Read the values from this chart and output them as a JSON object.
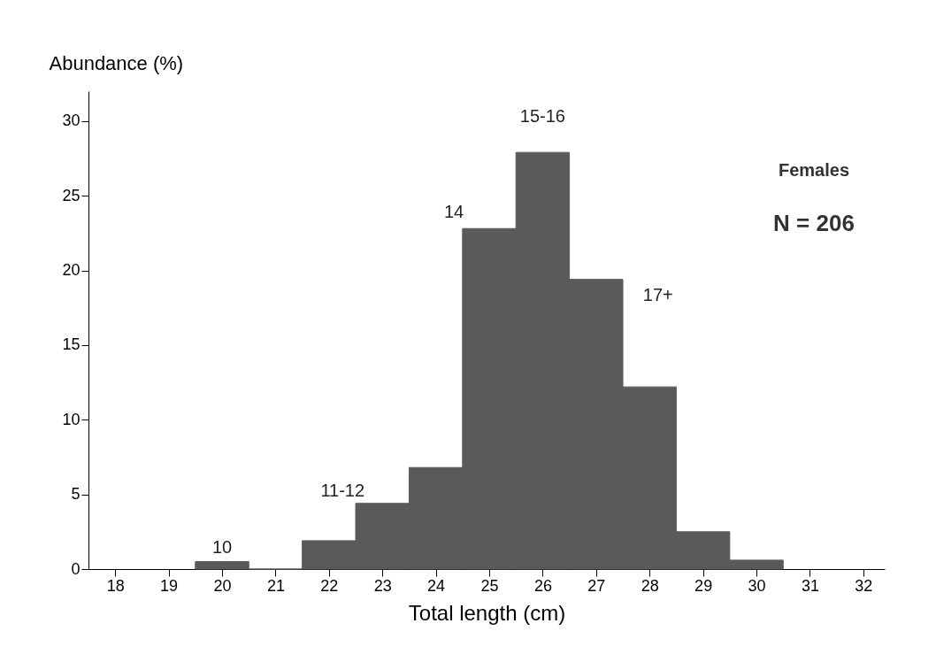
{
  "chart_data": {
    "type": "histogram",
    "xlabel": "Total length (cm)",
    "ylabel": "Abundance (%)",
    "bins": [
      19.5,
      20.5,
      21.5,
      22.5,
      23.5,
      24.5,
      25.5,
      26.5,
      27.5,
      28.5,
      29.5,
      30.5
    ],
    "values": [
      0.5,
      0,
      1.9,
      4.4,
      6.8,
      22.8,
      27.9,
      19.4,
      12.2,
      2.5,
      0.6
    ],
    "color": "#5a5a5a",
    "xlim": [
      17.5,
      32.4
    ],
    "xticks": [
      18,
      19,
      20,
      21,
      22,
      23,
      24,
      25,
      26,
      27,
      28,
      29,
      30,
      31,
      32
    ],
    "ylim": [
      0,
      32
    ],
    "yticks": [
      0,
      5,
      10,
      15,
      20,
      25,
      30
    ],
    "grid": false,
    "annotations": [
      {
        "text": "10",
        "x": 20,
        "y": 0.5
      },
      {
        "text": "11-12",
        "x": 23,
        "y": 4.4
      },
      {
        "text": "14",
        "x": 25,
        "y": 22.8
      },
      {
        "text": "15-16",
        "x": 26,
        "y": 27.9
      },
      {
        "text": "17+",
        "x": 27,
        "y": 19.4
      },
      "Females",
      "N = 206"
    ]
  }
}
